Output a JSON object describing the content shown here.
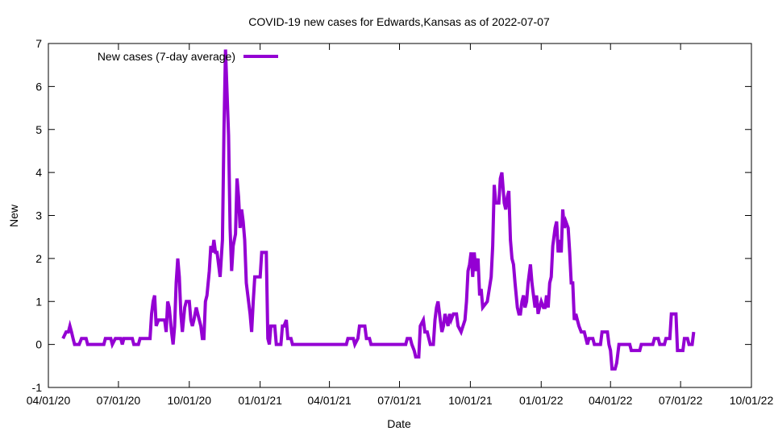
{
  "chart_data": {
    "type": "line",
    "title": "COVID-19 new cases for Edwards,Kansas as of 2022-07-07",
    "xlabel": "Date",
    "ylabel": "New",
    "x_start_date": "2020-04-01",
    "x_units": "days since 2020-04-01",
    "xlim": [
      0,
      913
    ],
    "ylim": [
      -1,
      7
    ],
    "yticks": [
      -1,
      0,
      1,
      2,
      3,
      4,
      5,
      6,
      7
    ],
    "xticks": [
      {
        "day": 0,
        "label": "04/01/20"
      },
      {
        "day": 91,
        "label": "07/01/20"
      },
      {
        "day": 183,
        "label": "10/01/20"
      },
      {
        "day": 275,
        "label": "01/01/21"
      },
      {
        "day": 365,
        "label": "04/01/21"
      },
      {
        "day": 456,
        "label": "07/01/21"
      },
      {
        "day": 548,
        "label": "10/01/21"
      },
      {
        "day": 640,
        "label": "01/01/22"
      },
      {
        "day": 730,
        "label": "04/01/22"
      },
      {
        "day": 821,
        "label": "07/01/22"
      },
      {
        "day": 913,
        "label": "10/01/22"
      }
    ],
    "grid": false,
    "legend_position": "top-left",
    "series": [
      {
        "name": "New cases (7-day average)",
        "color": "#9400d3",
        "points": [
          [
            19,
            0.14
          ],
          [
            23,
            0.29
          ],
          [
            26,
            0.29
          ],
          [
            28,
            0.43
          ],
          [
            30,
            0.29
          ],
          [
            32,
            0.14
          ],
          [
            34,
            0
          ],
          [
            40,
            0
          ],
          [
            43,
            0.14
          ],
          [
            49,
            0.14
          ],
          [
            51,
            0
          ],
          [
            72,
            0
          ],
          [
            74,
            0.14
          ],
          [
            81,
            0.14
          ],
          [
            83,
            0
          ],
          [
            87,
            0.14
          ],
          [
            94,
            0.14
          ],
          [
            96,
            0
          ],
          [
            98,
            0.14
          ],
          [
            109,
            0.14
          ],
          [
            111,
            0
          ],
          [
            117,
            0
          ],
          [
            119,
            0.14
          ],
          [
            132,
            0.14
          ],
          [
            134,
            0.71
          ],
          [
            136,
            1.0
          ],
          [
            138,
            1.14
          ],
          [
            140,
            0.43
          ],
          [
            143,
            0.57
          ],
          [
            151,
            0.57
          ],
          [
            153,
            0.29
          ],
          [
            155,
            1.0
          ],
          [
            157,
            0.86
          ],
          [
            160,
            0.29
          ],
          [
            162,
            0
          ],
          [
            164,
            0.43
          ],
          [
            166,
            1.43
          ],
          [
            168,
            2.0
          ],
          [
            170,
            1.57
          ],
          [
            172,
            0.71
          ],
          [
            174,
            0.29
          ],
          [
            177,
            0.86
          ],
          [
            179,
            1.0
          ],
          [
            183,
            1.0
          ],
          [
            185,
            0.57
          ],
          [
            187,
            0.43
          ],
          [
            189,
            0.57
          ],
          [
            192,
            0.86
          ],
          [
            194,
            0.71
          ],
          [
            196,
            0.57
          ],
          [
            198,
            0.43
          ],
          [
            200,
            0.14
          ],
          [
            202,
            0.14
          ],
          [
            204,
            1.0
          ],
          [
            206,
            1.14
          ],
          [
            209,
            1.71
          ],
          [
            211,
            2.29
          ],
          [
            213,
            2.14
          ],
          [
            215,
            2.43
          ],
          [
            217,
            2.14
          ],
          [
            219,
            2.14
          ],
          [
            221,
            1.86
          ],
          [
            223,
            1.57
          ],
          [
            226,
            2.43
          ],
          [
            228,
            5.0
          ],
          [
            230,
            6.86
          ],
          [
            232,
            5.86
          ],
          [
            234,
            4.86
          ],
          [
            236,
            2.71
          ],
          [
            238,
            1.71
          ],
          [
            240,
            2.29
          ],
          [
            243,
            2.57
          ],
          [
            245,
            3.86
          ],
          [
            247,
            3.43
          ],
          [
            249,
            2.71
          ],
          [
            251,
            3.14
          ],
          [
            253,
            2.86
          ],
          [
            255,
            2.43
          ],
          [
            257,
            1.43
          ],
          [
            260,
            1.0
          ],
          [
            262,
            0.71
          ],
          [
            264,
            0.29
          ],
          [
            266,
            1.0
          ],
          [
            268,
            1.57
          ],
          [
            275,
            1.57
          ],
          [
            277,
            2.14
          ],
          [
            283,
            2.14
          ],
          [
            285,
            0.14
          ],
          [
            287,
            0
          ],
          [
            289,
            0.43
          ],
          [
            294,
            0.43
          ],
          [
            296,
            0
          ],
          [
            302,
            0
          ],
          [
            304,
            0.43
          ],
          [
            306,
            0.43
          ],
          [
            309,
            0.57
          ],
          [
            311,
            0.14
          ],
          [
            315,
            0.14
          ],
          [
            317,
            0
          ],
          [
            387,
            0
          ],
          [
            389,
            0.14
          ],
          [
            396,
            0.14
          ],
          [
            398,
            0
          ],
          [
            402,
            0.14
          ],
          [
            404,
            0.43
          ],
          [
            411,
            0.43
          ],
          [
            413,
            0.14
          ],
          [
            417,
            0.14
          ],
          [
            419,
            0
          ],
          [
            464,
            0
          ],
          [
            466,
            0.14
          ],
          [
            470,
            0.14
          ],
          [
            472,
            0
          ],
          [
            475,
            -0.14
          ],
          [
            477,
            -0.29
          ],
          [
            481,
            -0.29
          ],
          [
            483,
            0.43
          ],
          [
            487,
            0.57
          ],
          [
            489,
            0.29
          ],
          [
            492,
            0.29
          ],
          [
            496,
            0
          ],
          [
            500,
            0
          ],
          [
            502,
            0.57
          ],
          [
            504,
            0.86
          ],
          [
            506,
            1.0
          ],
          [
            509,
            0.57
          ],
          [
            511,
            0.29
          ],
          [
            513,
            0.43
          ],
          [
            515,
            0.71
          ],
          [
            517,
            0.57
          ],
          [
            519,
            0.43
          ],
          [
            521,
            0.71
          ],
          [
            523,
            0.57
          ],
          [
            526,
            0.71
          ],
          [
            530,
            0.71
          ],
          [
            532,
            0.43
          ],
          [
            536,
            0.29
          ],
          [
            541,
            0.57
          ],
          [
            543,
            1.0
          ],
          [
            545,
            1.71
          ],
          [
            547,
            1.86
          ],
          [
            549,
            2.14
          ],
          [
            551,
            1.57
          ],
          [
            553,
            2.14
          ],
          [
            555,
            1.71
          ],
          [
            558,
            2.0
          ],
          [
            560,
            1.14
          ],
          [
            562,
            1.29
          ],
          [
            564,
            0.86
          ],
          [
            570,
            1.0
          ],
          [
            575,
            1.57
          ],
          [
            577,
            2.29
          ],
          [
            579,
            3.71
          ],
          [
            581,
            3.29
          ],
          [
            585,
            3.29
          ],
          [
            587,
            3.86
          ],
          [
            589,
            4.0
          ],
          [
            592,
            3.29
          ],
          [
            594,
            3.14
          ],
          [
            596,
            3.43
          ],
          [
            598,
            3.57
          ],
          [
            600,
            2.43
          ],
          [
            602,
            2.0
          ],
          [
            604,
            1.86
          ],
          [
            606,
            1.43
          ],
          [
            609,
            0.86
          ],
          [
            611,
            0.71
          ],
          [
            613,
            0.71
          ],
          [
            615,
            1.0
          ],
          [
            617,
            1.14
          ],
          [
            619,
            0.86
          ],
          [
            621,
            1.0
          ],
          [
            623,
            1.43
          ],
          [
            626,
            1.86
          ],
          [
            628,
            1.43
          ],
          [
            630,
            1.14
          ],
          [
            632,
            0.86
          ],
          [
            634,
            1.14
          ],
          [
            636,
            0.71
          ],
          [
            638,
            0.86
          ],
          [
            640,
            1.0
          ],
          [
            643,
            0.86
          ],
          [
            645,
            0.86
          ],
          [
            647,
            1.14
          ],
          [
            649,
            0.86
          ],
          [
            651,
            1.43
          ],
          [
            653,
            1.57
          ],
          [
            655,
            2.29
          ],
          [
            658,
            2.71
          ],
          [
            660,
            2.86
          ],
          [
            662,
            2.14
          ],
          [
            664,
            2.43
          ],
          [
            666,
            2.14
          ],
          [
            668,
            3.14
          ],
          [
            670,
            2.71
          ],
          [
            672,
            2.86
          ],
          [
            675,
            2.71
          ],
          [
            677,
            2.14
          ],
          [
            679,
            1.43
          ],
          [
            681,
            1.43
          ],
          [
            683,
            0.57
          ],
          [
            685,
            0.71
          ],
          [
            687,
            0.57
          ],
          [
            689,
            0.43
          ],
          [
            692,
            0.29
          ],
          [
            696,
            0.29
          ],
          [
            698,
            0.14
          ],
          [
            700,
            0
          ],
          [
            702,
            0.14
          ],
          [
            707,
            0.14
          ],
          [
            709,
            0
          ],
          [
            717,
            0
          ],
          [
            719,
            0.29
          ],
          [
            726,
            0.29
          ],
          [
            728,
            0
          ],
          [
            730,
            -0.14
          ],
          [
            732,
            -0.57
          ],
          [
            736,
            -0.57
          ],
          [
            738,
            -0.43
          ],
          [
            741,
            0
          ],
          [
            755,
            0
          ],
          [
            757,
            -0.14
          ],
          [
            768,
            -0.14
          ],
          [
            770,
            0
          ],
          [
            785,
            0
          ],
          [
            787,
            0.14
          ],
          [
            792,
            0.14
          ],
          [
            794,
            0
          ],
          [
            800,
            0
          ],
          [
            802,
            0.14
          ],
          [
            807,
            0.14
          ],
          [
            809,
            0.71
          ],
          [
            815,
            0.71
          ],
          [
            817,
            -0.14
          ],
          [
            824,
            -0.14
          ],
          [
            826,
            0.14
          ],
          [
            830,
            0.14
          ],
          [
            832,
            0
          ],
          [
            836,
            0
          ],
          [
            838,
            0.29
          ]
        ]
      }
    ]
  }
}
